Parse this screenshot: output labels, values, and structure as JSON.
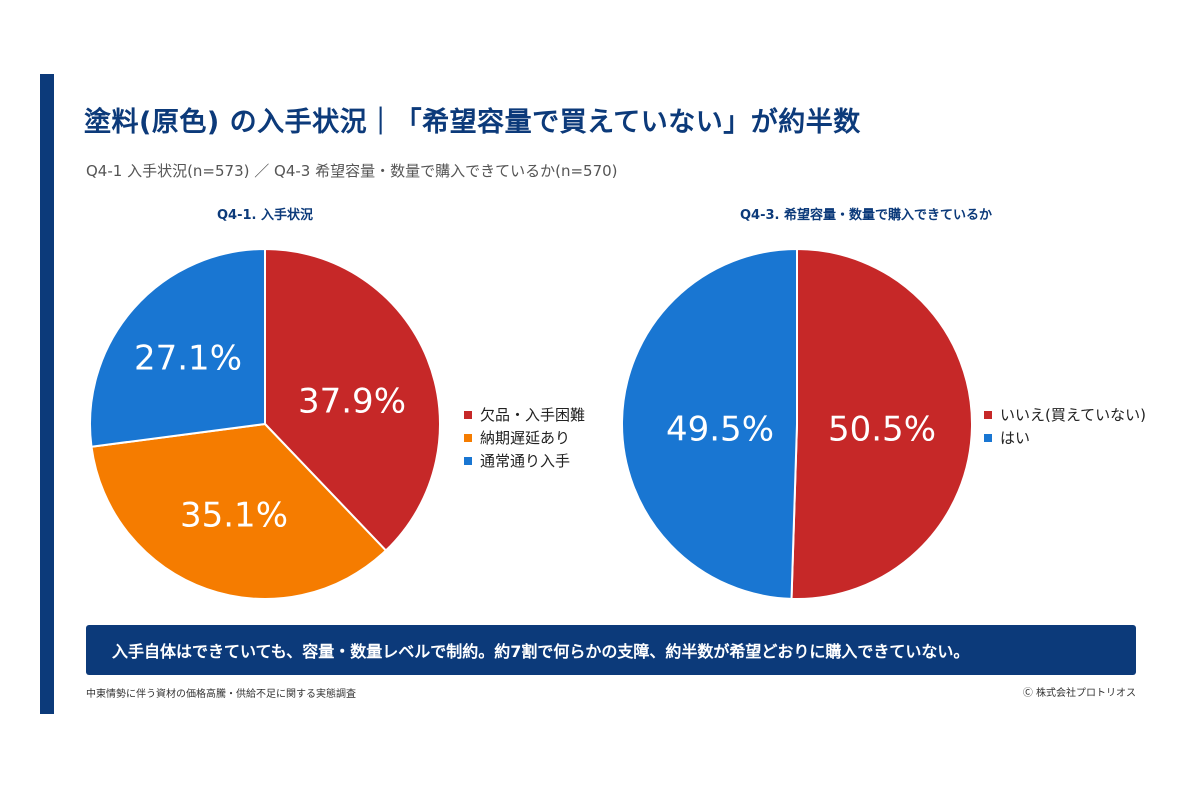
{
  "header": {
    "title": "塗料(原色) の入手状況｜「希望容量で買えていない」が約半数",
    "subtitle": "Q4-1 入手状況(n=573) ／ Q4-3 希望容量・数量で購入できているか(n=570)"
  },
  "colors": {
    "accent": "#0c3a7a",
    "red": "#c62828",
    "orange": "#f57c00",
    "blue": "#1976d2"
  },
  "chart_data": [
    {
      "type": "pie",
      "title": "Q4-1. 入手状況",
      "slices": [
        {
          "label": "欠品・入手困難",
          "value": 37.9,
          "display": "37.9%",
          "color": "#c62828"
        },
        {
          "label": "納期遅延あり",
          "value": 35.1,
          "display": "35.1%",
          "color": "#f57c00"
        },
        {
          "label": "通常通り入手",
          "value": 27.1,
          "display": "27.1%",
          "color": "#1976d2"
        }
      ],
      "legend_position": "right"
    },
    {
      "type": "pie",
      "title": "Q4-3. 希望容量・数量で購入できているか",
      "slices": [
        {
          "label": "いいえ(買えていない)",
          "value": 50.5,
          "display": "50.5%",
          "color": "#c62828"
        },
        {
          "label": "はい",
          "value": 49.5,
          "display": "49.5%",
          "color": "#1976d2"
        }
      ],
      "legend_position": "right"
    }
  ],
  "banner": {
    "text": "入手自体はできていても、容量・数量レベルで制約。約7割で何らかの支障、約半数が希望どおりに購入できていない。"
  },
  "footer": {
    "source": "中東情勢に伴う資材の価格高騰・供給不足に関する実態調査",
    "copyright": "Ⓒ 株式会社プロトリオス"
  }
}
